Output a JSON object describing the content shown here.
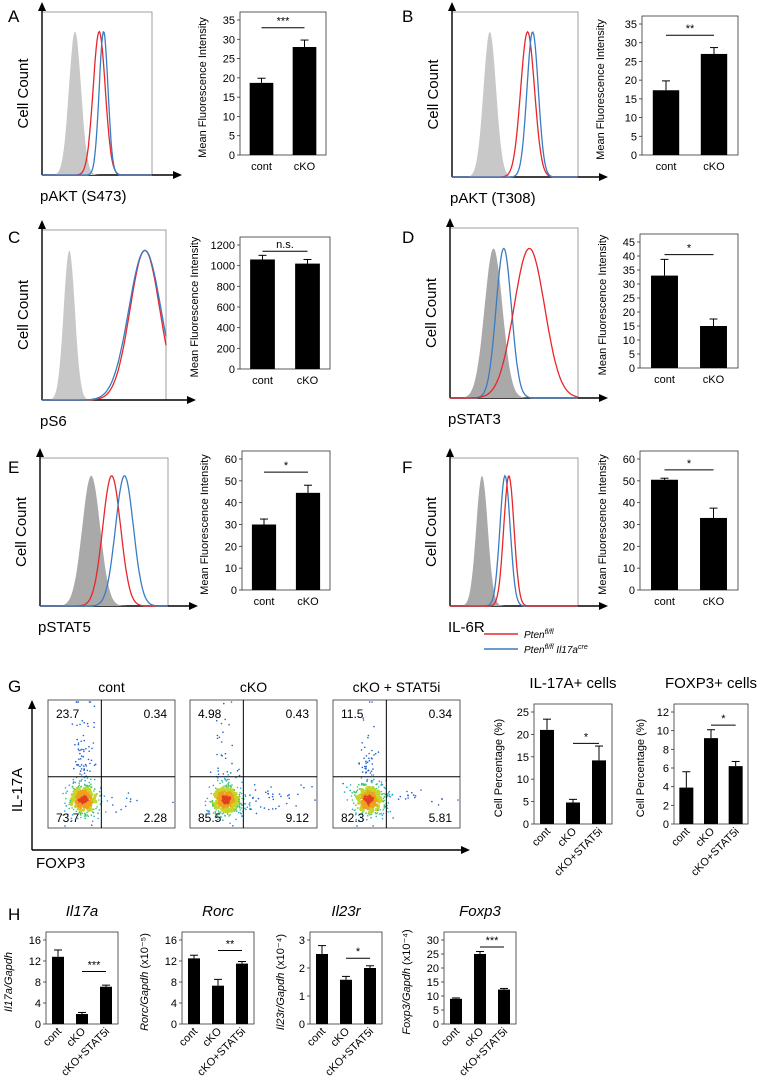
{
  "colors": {
    "red": "#e8262b",
    "blue": "#3a7cc2",
    "gray_fill": "#c8c8c8",
    "dark_gray_fill": "#a9a9a9",
    "bar": "#000000"
  },
  "legend": {
    "entry1_prefix": "Pten",
    "entry1_sup": "fl/fl",
    "entry2_prefix": "Pten",
    "entry2_sup": "fl/fl",
    "entry2_gene": " Il17a",
    "entry2_sup2": "cre"
  },
  "chart_data": [
    {
      "panel": "A",
      "type": "histogram",
      "xlabel": "pAKT (S473)",
      "ylabel": "Cell Count",
      "series": [
        {
          "name": "gray",
          "peak": 0.3,
          "width": 0.055,
          "fill": "gray"
        },
        {
          "name": "red",
          "peak": 0.52,
          "width": 0.055
        },
        {
          "name": "blue",
          "peak": 0.56,
          "width": 0.04
        }
      ]
    },
    {
      "panel": "A",
      "type": "bar",
      "categories": [
        "cont",
        "cKO"
      ],
      "values": [
        18.7,
        28.0
      ],
      "errors": [
        1.2,
        1.8
      ],
      "ylim": [
        0,
        35
      ],
      "yticks": [
        0,
        5,
        10,
        15,
        20,
        25,
        30,
        35
      ],
      "ylabel": "Mean Fluorescence Intensity",
      "significance": "***"
    },
    {
      "panel": "B",
      "type": "histogram",
      "xlabel": "pAKT (T308)",
      "ylabel": "Cell Count",
      "series": [
        {
          "name": "gray",
          "peak": 0.3,
          "width": 0.05,
          "fill": "gray"
        },
        {
          "name": "red",
          "peak": 0.6,
          "width": 0.055
        },
        {
          "name": "blue",
          "peak": 0.64,
          "width": 0.045
        }
      ]
    },
    {
      "panel": "B",
      "type": "bar",
      "categories": [
        "cont",
        "cKO"
      ],
      "values": [
        17.3,
        27.0
      ],
      "errors": [
        2.5,
        1.7
      ],
      "ylim": [
        0,
        35
      ],
      "yticks": [
        0,
        5,
        10,
        15,
        20,
        25,
        30,
        35
      ],
      "ylabel": "Mean Fluorescence Intensity",
      "significance": "**"
    },
    {
      "panel": "C",
      "type": "histogram",
      "xlabel": "pS6",
      "ylabel": "Cell Count",
      "series": [
        {
          "name": "gray",
          "peak": 0.22,
          "width": 0.045,
          "fill": "gray"
        },
        {
          "name": "red",
          "peak": 0.83,
          "width": 0.12
        },
        {
          "name": "blue",
          "peak": 0.83,
          "width": 0.13
        }
      ]
    },
    {
      "panel": "C",
      "type": "bar",
      "categories": [
        "cont",
        "cKO"
      ],
      "values": [
        1060,
        1020
      ],
      "errors": [
        40,
        40
      ],
      "ylim": [
        0,
        1200
      ],
      "yticks": [
        0,
        200,
        400,
        600,
        800,
        1000,
        1200
      ],
      "ylabel": "Mean Fluorescence Intensity",
      "significance": "n.s."
    },
    {
      "panel": "D",
      "type": "histogram",
      "xlabel": "pSTAT3",
      "ylabel": "Cell Count",
      "series": [
        {
          "name": "gray",
          "peak": 0.34,
          "width": 0.07,
          "fill": "darkgray"
        },
        {
          "name": "blue",
          "peak": 0.42,
          "width": 0.06
        },
        {
          "name": "red",
          "peak": 0.62,
          "width": 0.12
        }
      ]
    },
    {
      "panel": "D",
      "type": "bar",
      "categories": [
        "cont",
        "cKO"
      ],
      "values": [
        33,
        15
      ],
      "errors": [
        5.8,
        2.5
      ],
      "ylim": [
        0,
        45
      ],
      "yticks": [
        0,
        5,
        10,
        15,
        20,
        25,
        30,
        35,
        40,
        45
      ],
      "ylabel": "Mean Fluorescence Intensity",
      "significance": "*"
    },
    {
      "panel": "E",
      "type": "histogram",
      "xlabel": "pSTAT5",
      "ylabel": "Cell Count",
      "series": [
        {
          "name": "gray",
          "peak": 0.4,
          "width": 0.07,
          "fill": "darkgray"
        },
        {
          "name": "red",
          "peak": 0.56,
          "width": 0.07
        },
        {
          "name": "blue",
          "peak": 0.66,
          "width": 0.07
        }
      ]
    },
    {
      "panel": "E",
      "type": "bar",
      "categories": [
        "cont",
        "cKO"
      ],
      "values": [
        30,
        44.5
      ],
      "errors": [
        2.5,
        3.5
      ],
      "ylim": [
        0,
        60
      ],
      "yticks": [
        0,
        10,
        20,
        30,
        40,
        50,
        60
      ],
      "ylabel": "Mean Fluorescence Intensity",
      "significance": "*"
    },
    {
      "panel": "F",
      "type": "histogram",
      "xlabel": "IL-6R",
      "ylabel": "Cell Count",
      "series": [
        {
          "name": "gray",
          "peak": 0.25,
          "width": 0.045,
          "fill": "darkgray"
        },
        {
          "name": "blue",
          "peak": 0.43,
          "width": 0.04
        },
        {
          "name": "red",
          "peak": 0.46,
          "width": 0.04
        }
      ]
    },
    {
      "panel": "F",
      "type": "bar",
      "categories": [
        "cont",
        "cKO"
      ],
      "values": [
        50.5,
        33
      ],
      "errors": [
        0.7,
        4.5
      ],
      "ylim": [
        0,
        60
      ],
      "yticks": [
        0,
        10,
        20,
        30,
        40,
        50,
        60
      ],
      "ylabel": "Mean Fluorescence Intensity",
      "significance": "*"
    },
    {
      "panel": "G",
      "type": "scatter",
      "xlabel": "FOXP3",
      "ylabel": "IL-17A",
      "plots": [
        {
          "title": "cont",
          "quadrants": {
            "ul": "23.7",
            "ur": "0.34",
            "ll": "73.7",
            "lr": "2.28"
          }
        },
        {
          "title": "cKO",
          "quadrants": {
            "ul": "4.98",
            "ur": "0.43",
            "ll": "85.5",
            "lr": "9.12"
          }
        },
        {
          "title": "cKO + STAT5i",
          "quadrants": {
            "ul": "11.5",
            "ur": "0.34",
            "ll": "82.3",
            "lr": "5.81"
          }
        }
      ]
    },
    {
      "panel": "G",
      "type": "bar",
      "title": "IL-17A+ cells",
      "categories": [
        "cont",
        "cKO",
        "cKO+STAT5i"
      ],
      "values": [
        21,
        4.8,
        14.2
      ],
      "errors": [
        2.4,
        0.7,
        3.2
      ],
      "ylim": [
        0,
        25
      ],
      "yticks": [
        0,
        5,
        10,
        15,
        20,
        25
      ],
      "ylabel": "Cell Percentage (%)",
      "significance": "*"
    },
    {
      "panel": "G",
      "type": "bar",
      "title": "FOXP3+ cells",
      "categories": [
        "cont",
        "cKO",
        "cKO+STAT5i"
      ],
      "values": [
        3.9,
        9.2,
        6.2
      ],
      "errors": [
        1.7,
        0.9,
        0.5
      ],
      "ylim": [
        0,
        12
      ],
      "yticks": [
        0,
        2,
        4,
        6,
        8,
        10,
        12
      ],
      "ylabel": "Cell Percentage (%)",
      "significance": "*"
    },
    {
      "panel": "H",
      "type": "bar",
      "title": "Il17a",
      "categories": [
        "cont",
        "cKO",
        "cKO+STAT5i"
      ],
      "values": [
        12.8,
        1.9,
        7.1
      ],
      "errors": [
        1.3,
        0.3,
        0.3
      ],
      "ylim": [
        0,
        16
      ],
      "yticks": [
        0,
        4,
        8,
        12,
        16
      ],
      "ylabel": "Il17a/Gapdh",
      "significance": "***"
    },
    {
      "panel": "H",
      "type": "bar",
      "title": "Rorc",
      "categories": [
        "cont",
        "cKO",
        "cKO+STAT5i"
      ],
      "values": [
        12.5,
        7.3,
        11.5
      ],
      "errors": [
        0.6,
        1.2,
        0.4
      ],
      "ylim": [
        0,
        16
      ],
      "yticks": [
        0,
        4,
        8,
        12,
        16
      ],
      "ylabel": "Rorc/Gapdh (x10⁻⁵)",
      "significance": "**"
    },
    {
      "panel": "H",
      "type": "bar",
      "title": "Il23r",
      "categories": [
        "cont",
        "cKO",
        "cKO+STAT5i"
      ],
      "values": [
        2.5,
        1.58,
        2.0
      ],
      "errors": [
        0.3,
        0.12,
        0.08
      ],
      "ylim": [
        0,
        3
      ],
      "yticks": [
        0,
        1,
        2,
        3
      ],
      "ylabel": "Il23r/Gapdh (x10⁻⁴)",
      "significance": "*"
    },
    {
      "panel": "H",
      "type": "bar",
      "title": "Foxp3",
      "categories": [
        "cont",
        "cKO",
        "cKO+STAT5i"
      ],
      "values": [
        9,
        25,
        12.3
      ],
      "errors": [
        0.3,
        0.9,
        0.4
      ],
      "ylim": [
        0,
        30
      ],
      "yticks": [
        0,
        5,
        10,
        15,
        20,
        25,
        30
      ],
      "ylabel": "Foxp3/Gapdh (x10⁻⁴)",
      "significance": "***"
    }
  ]
}
